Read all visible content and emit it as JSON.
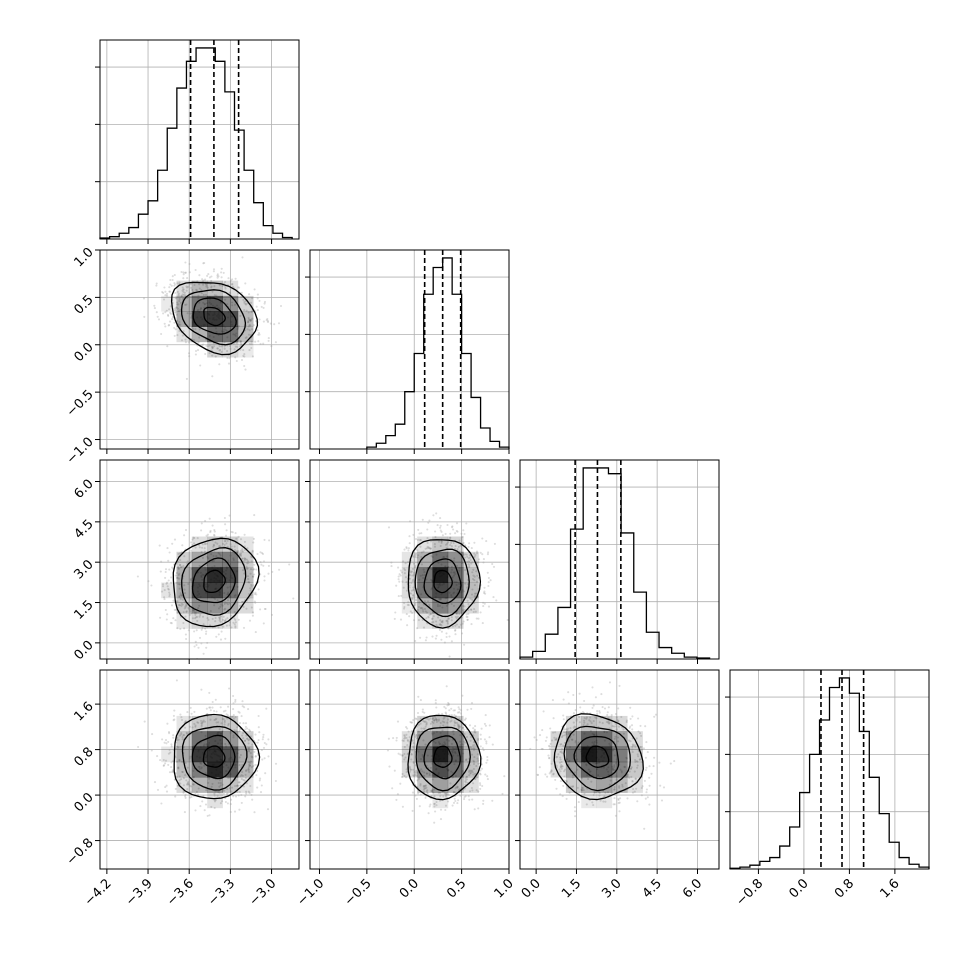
{
  "chart_data": {
    "type": "corner",
    "parameters": [
      {
        "id": "p0",
        "mean": -3.42,
        "sd": 0.155,
        "range": [
          -4.25,
          -2.8
        ],
        "ticks": [
          -4.2,
          -3.9,
          -3.6,
          -3.3,
          -3.0
        ],
        "tick_labels": [
          "−4.2",
          "−3.9",
          "−3.6",
          "−3.3",
          "−3.0"
        ],
        "quantiles": [
          -3.59,
          -3.42,
          -3.24
        ],
        "hist_bins": [
          -4.25,
          -4.18,
          -4.11,
          -4.04,
          -3.97,
          -3.9,
          -3.83,
          -3.76,
          -3.69,
          -3.62,
          -3.55,
          -3.48,
          -3.41,
          -3.34,
          -3.27,
          -3.2,
          -3.13,
          -3.06,
          -2.99,
          -2.92,
          -2.85
        ],
        "hist_counts": [
          0.005,
          0.012,
          0.03,
          0.06,
          0.13,
          0.2,
          0.36,
          0.58,
          0.79,
          0.93,
          1.0,
          1.0,
          0.93,
          0.77,
          0.57,
          0.36,
          0.19,
          0.07,
          0.03,
          0.008
        ]
      },
      {
        "id": "p1",
        "mean": 0.3,
        "sd": 0.19,
        "range": [
          -1.1,
          1.0
        ],
        "ticks": [
          -1.0,
          -0.5,
          0.0,
          0.5,
          1.0
        ],
        "tick_labels": [
          "−1.0",
          "−0.5",
          "0.0",
          "0.5",
          "1.0"
        ],
        "quantiles": [
          0.11,
          0.3,
          0.49
        ],
        "hist_bins": [
          -0.5,
          -0.4,
          -0.3,
          -0.2,
          -0.1,
          0.0,
          0.1,
          0.2,
          0.3,
          0.4,
          0.5,
          0.6,
          0.7,
          0.8,
          0.9,
          1.0
        ],
        "hist_counts": [
          0.01,
          0.03,
          0.07,
          0.13,
          0.3,
          0.5,
          0.81,
          0.95,
          1.0,
          0.81,
          0.5,
          0.27,
          0.11,
          0.04,
          0.01
        ]
      },
      {
        "id": "p2",
        "mean": 2.28,
        "sd": 0.82,
        "range": [
          -0.6,
          6.8
        ],
        "ticks": [
          0.0,
          1.5,
          3.0,
          4.5,
          6.0
        ],
        "tick_labels": [
          "0.0",
          "1.5",
          "3.0",
          "4.5",
          "6.0"
        ],
        "quantiles": [
          1.45,
          2.28,
          3.15
        ],
        "hist_bins": [
          -0.6,
          -0.13,
          0.34,
          0.81,
          1.28,
          1.75,
          2.22,
          2.69,
          3.16,
          3.63,
          4.1,
          4.57,
          5.04,
          5.51,
          5.98,
          6.45
        ],
        "hist_counts": [
          0.01,
          0.04,
          0.13,
          0.27,
          0.68,
          1.0,
          1.0,
          0.97,
          0.66,
          0.35,
          0.14,
          0.06,
          0.03,
          0.01,
          0.005
        ]
      },
      {
        "id": "p3",
        "mean": 0.67,
        "sd": 0.37,
        "range": [
          -1.3,
          2.2
        ],
        "ticks": [
          -0.8,
          0.0,
          0.8,
          1.6
        ],
        "tick_labels": [
          "−0.8",
          "0.0",
          "0.8",
          "1.6"
        ],
        "quantiles": [
          0.3,
          0.67,
          1.05
        ],
        "hist_bins": [
          -1.3,
          -1.125,
          -0.95,
          -0.775,
          -0.6,
          -0.425,
          -0.25,
          -0.075,
          0.1,
          0.275,
          0.45,
          0.625,
          0.8,
          0.975,
          1.15,
          1.325,
          1.5,
          1.675,
          1.85,
          2.025,
          2.2
        ],
        "hist_counts": [
          0.004,
          0.01,
          0.02,
          0.04,
          0.06,
          0.12,
          0.22,
          0.4,
          0.6,
          0.78,
          0.95,
          1.0,
          0.92,
          0.72,
          0.48,
          0.29,
          0.14,
          0.06,
          0.025,
          0.01
        ]
      }
    ],
    "correlations": {
      "1_0": -0.25,
      "2_0": 0.15,
      "2_1": 0.0,
      "3_0": 0.0,
      "3_1": 0.0,
      "3_2": -0.1
    },
    "contour_levels_sigma": [
      0.5,
      1.0,
      1.5,
      2.0
    ],
    "grid": true,
    "scatter_color": "#9e9e9e",
    "density_color": "#000000",
    "line_color": "#000000"
  }
}
